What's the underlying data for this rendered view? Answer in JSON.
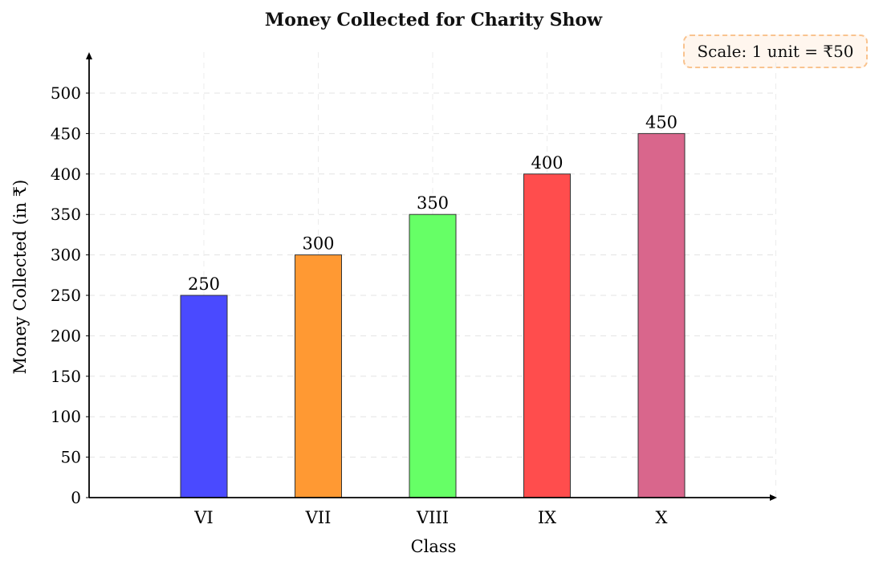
{
  "chart_data": {
    "type": "bar",
    "title": "Money Collected for Charity Show",
    "xlabel": "Class",
    "ylabel": "Money Collected (in ₹)",
    "categories": [
      "VI",
      "VII",
      "VIII",
      "IX",
      "X"
    ],
    "values": [
      250,
      300,
      350,
      400,
      450
    ],
    "data_labels": [
      "250",
      "300",
      "350",
      "400",
      "450"
    ],
    "colors": [
      "#4a4aff",
      "#ff9933",
      "#66ff66",
      "#ff4d4d",
      "#d9668c"
    ],
    "ylim": [
      0,
      500
    ],
    "yticks": [
      0,
      50,
      100,
      150,
      200,
      250,
      300,
      350,
      400,
      450,
      500
    ],
    "grid": true,
    "annotation": "Scale: 1 unit = ₹50",
    "annotation_placement": "top-right"
  }
}
